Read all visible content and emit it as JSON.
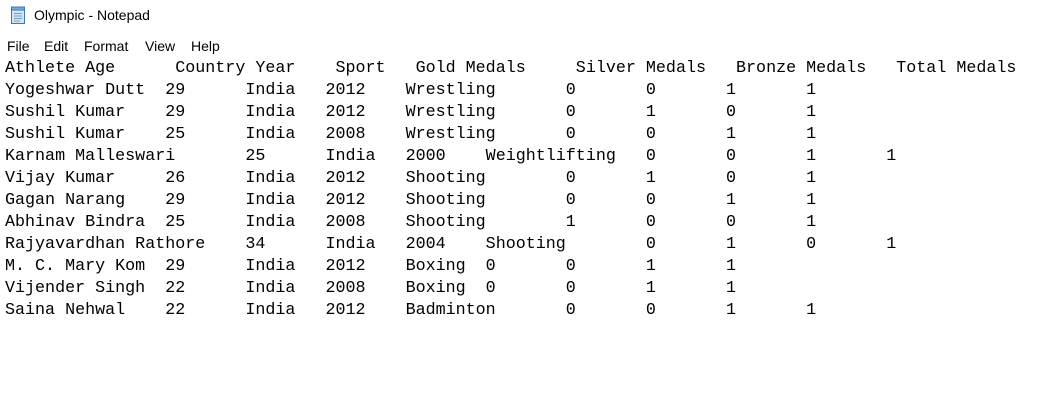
{
  "window": {
    "title": "Olympic - Notepad",
    "icon": "notepad-icon"
  },
  "menu": {
    "items": [
      "File",
      "Edit",
      "Format",
      "View",
      "Help"
    ]
  },
  "document": {
    "lines": [
      "Athlete Age      Country Year    Sport   Gold Medals     Silver Medals   Bronze Medals   Total Medals",
      "Yogeshwar Dutt  29      India   2012    Wrestling       0       0       1       1",
      "Sushil Kumar    29      India   2012    Wrestling       0       1       0       1",
      "Sushil Kumar    25      India   2008    Wrestling       0       0       1       1",
      "Karnam Malleswari       25      India   2000    Weightlifting   0       0       1       1",
      "Vijay Kumar     26      India   2012    Shooting        0       1       0       1",
      "Gagan Narang    29      India   2012    Shooting        0       0       1       1",
      "Abhinav Bindra  25      India   2008    Shooting        1       0       0       1",
      "Rajyavardhan Rathore    34      India   2004    Shooting        0       1       0       1",
      "M. C. Mary Kom  29      India   2012    Boxing  0       0       1       1",
      "Vijender Singh  22      India   2008    Boxing  0       0       1       1",
      "Saina Nehwal    22      India   2012    Badminton       0       0       1       1"
    ]
  }
}
